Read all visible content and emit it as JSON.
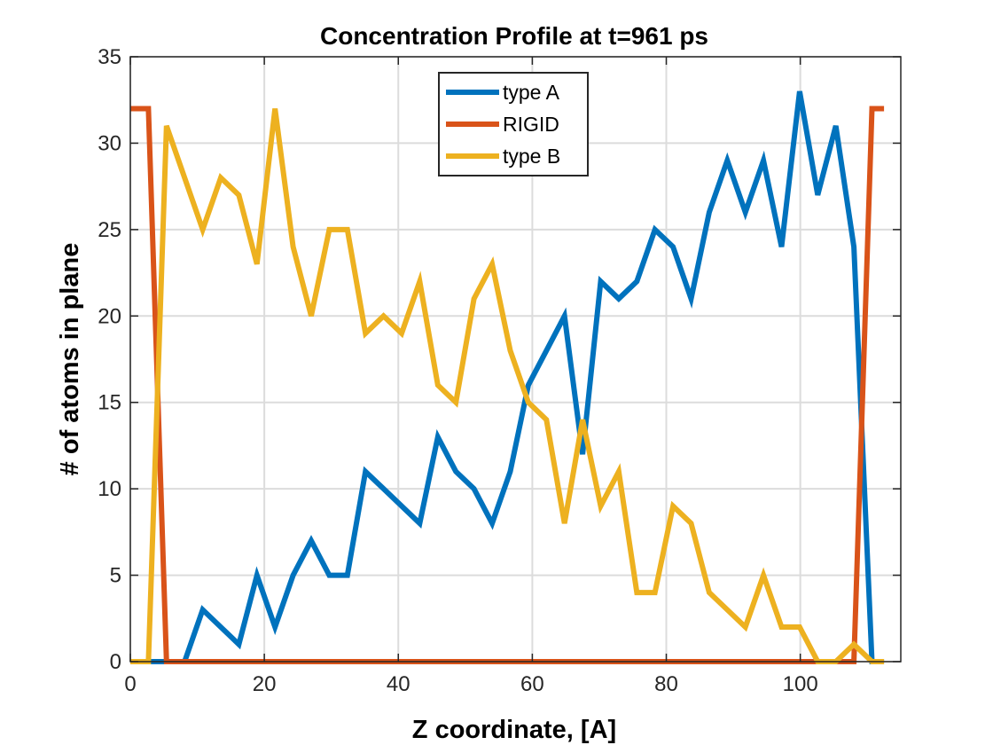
{
  "chart_data": {
    "type": "line",
    "title": "Concentration Profile at t=961 ps",
    "xlabel": "Z coordinate, [A]",
    "ylabel": "# of atoms in plane",
    "xlim": [
      0,
      115
    ],
    "ylim": [
      0,
      35
    ],
    "xticks": [
      "0",
      "20",
      "40",
      "60",
      "80",
      "100"
    ],
    "yticks": [
      "0",
      "5",
      "10",
      "15",
      "20",
      "25",
      "30",
      "35"
    ],
    "grid": true,
    "legend_position": "top-center",
    "series": [
      {
        "name": "type A",
        "color": "#0072BD",
        "x": [
          0,
          2.7,
          5.4,
          8.1,
          10.8,
          13.5,
          16.2,
          18.9,
          21.6,
          24.3,
          27,
          29.7,
          32.4,
          35.1,
          37.8,
          40.5,
          43.2,
          45.9,
          48.6,
          51.3,
          54,
          56.7,
          59.4,
          62.1,
          64.8,
          67.5,
          70.2,
          72.9,
          75.6,
          78.3,
          81,
          83.7,
          86.4,
          89.1,
          91.8,
          94.5,
          97.2,
          99.9,
          102.6,
          105.3,
          108,
          110.7,
          112.5
        ],
        "y": [
          0,
          0,
          0,
          0,
          3,
          2,
          1,
          5,
          2,
          5,
          7,
          5,
          5,
          11,
          10,
          9,
          8,
          13,
          11,
          10,
          8,
          11,
          16,
          18,
          20,
          12,
          22,
          21,
          22,
          25,
          24,
          21,
          26,
          29,
          26,
          29,
          24,
          33,
          27,
          31,
          24,
          0,
          0
        ]
      },
      {
        "name": "RIGID",
        "color": "#D95319",
        "x": [
          0,
          2.7,
          5.4,
          8.1,
          105.3,
          108,
          110.7,
          112.5
        ],
        "y": [
          32,
          32,
          0,
          0,
          0,
          0,
          32,
          32
        ]
      },
      {
        "name": "type B",
        "color": "#EDB120",
        "x": [
          0,
          2.7,
          5.4,
          8.1,
          10.8,
          13.5,
          16.2,
          18.9,
          21.6,
          24.3,
          27,
          29.7,
          32.4,
          35.1,
          37.8,
          40.5,
          43.2,
          45.9,
          48.6,
          51.3,
          54,
          56.7,
          59.4,
          62.1,
          64.8,
          67.5,
          70.2,
          72.9,
          75.6,
          78.3,
          81,
          83.7,
          86.4,
          89.1,
          91.8,
          94.5,
          97.2,
          99.9,
          102.6,
          105.3,
          108,
          110.7,
          112.5
        ],
        "y": [
          0,
          0,
          31,
          28,
          25,
          28,
          27,
          23,
          32,
          24,
          20,
          25,
          25,
          19,
          20,
          19,
          22,
          16,
          15,
          21,
          23,
          18,
          15,
          14,
          8,
          14,
          9,
          11,
          4,
          4,
          9,
          8,
          4,
          3,
          2,
          5,
          2,
          2,
          0,
          0,
          1,
          0,
          0
        ]
      }
    ]
  }
}
